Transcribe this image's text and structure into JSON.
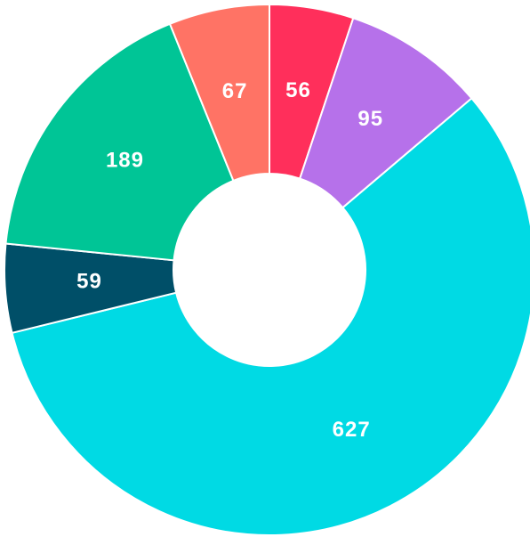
{
  "chart_data": {
    "type": "donut",
    "values": [
      56,
      95,
      627,
      59,
      189,
      67
    ],
    "colors": [
      "#ff2f5b",
      "#b671ea",
      "#00dae4",
      "#004f68",
      "#00c596",
      "#ff7365"
    ]
  }
}
